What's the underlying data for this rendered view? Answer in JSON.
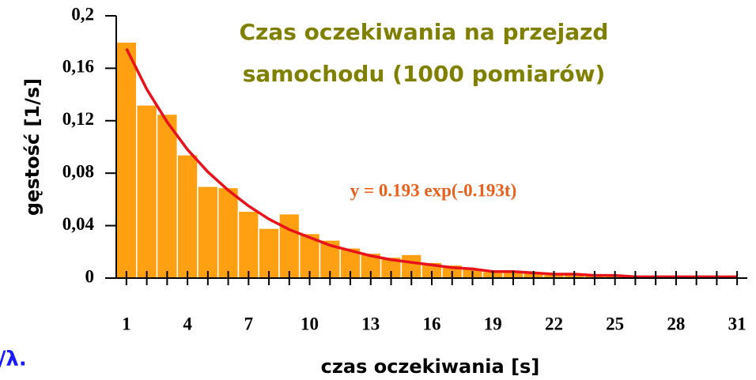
{
  "chart_data": {
    "type": "histogram",
    "title": [
      "Czas oczekiwania na przejazd",
      "samochodu (1000 pomiarów)"
    ],
    "title_color": "#808000",
    "xlabel": "czas oczekiwania [s]",
    "ylabel": "gęstość [1/s]",
    "annotation": "y = 0.193 exp(-0.193t)",
    "annotation_color": "#e8601c",
    "bins": [
      0.5,
      1.5,
      2.5,
      3.5,
      4.5,
      5.5,
      6.5,
      7.5,
      8.5,
      9.5,
      10.5,
      11.5,
      12.5,
      13.5,
      14.5,
      15.5,
      16.5,
      17.5,
      18.5,
      19.5,
      20.5,
      21.5,
      22.5,
      23.5,
      24.5,
      25.5,
      26.5,
      27.5,
      28.5,
      29.5,
      30.5,
      31.5
    ],
    "values": [
      0.18,
      0.132,
      0.125,
      0.094,
      0.07,
      0.069,
      0.051,
      0.038,
      0.049,
      0.034,
      0.029,
      0.023,
      0.019,
      0.016,
      0.018,
      0.012,
      0.01,
      0.007,
      0.005,
      0.005,
      0.004,
      0.003,
      0.003,
      0.002,
      0.002,
      0.002,
      0.001,
      0.001,
      0.001,
      0.001,
      0.001
    ],
    "color": "#ff9f12",
    "fit": {
      "color": "#e8121a",
      "x": [
        1,
        2,
        3,
        4,
        5,
        6,
        7,
        8,
        9,
        10,
        11,
        12,
        13,
        14,
        15,
        16,
        17,
        18,
        19,
        20,
        21,
        22,
        23,
        24,
        25,
        26,
        27,
        28,
        29,
        30,
        31
      ],
      "values": [
        0.175,
        0.144,
        0.119,
        0.098,
        0.081,
        0.067,
        0.055,
        0.045,
        0.037,
        0.031,
        0.025,
        0.021,
        0.017,
        0.014,
        0.012,
        0.01,
        0.008,
        0.007,
        0.005,
        0.005,
        0.004,
        0.003,
        0.003,
        0.002,
        0.002,
        0.001,
        0.001,
        0.001,
        0.001,
        0.001,
        0.001
      ]
    },
    "xlim": [
      0.5,
      31.5
    ],
    "xticks": [
      1,
      4,
      7,
      10,
      13,
      16,
      19,
      22,
      25,
      28,
      31
    ],
    "x_minor_ticks": [
      2,
      3,
      5,
      6,
      8,
      9,
      11,
      12,
      14,
      15,
      17,
      18,
      20,
      21,
      23,
      24,
      26,
      27,
      29,
      30
    ],
    "ylim": [
      0,
      0.2
    ],
    "yticks": [
      0,
      {
        "value": 0.04,
        "label": "0,04"
      },
      {
        "value": 0.08,
        "label": "0,08"
      },
      {
        "value": 0.12,
        "label": "0,12"
      },
      {
        "value": 0.16,
        "label": "0,16"
      },
      {
        "value": 0.2,
        "label": "0,2"
      }
    ]
  },
  "clipped_text": "./λ.",
  "clipped_text_color": "#1a1aff"
}
